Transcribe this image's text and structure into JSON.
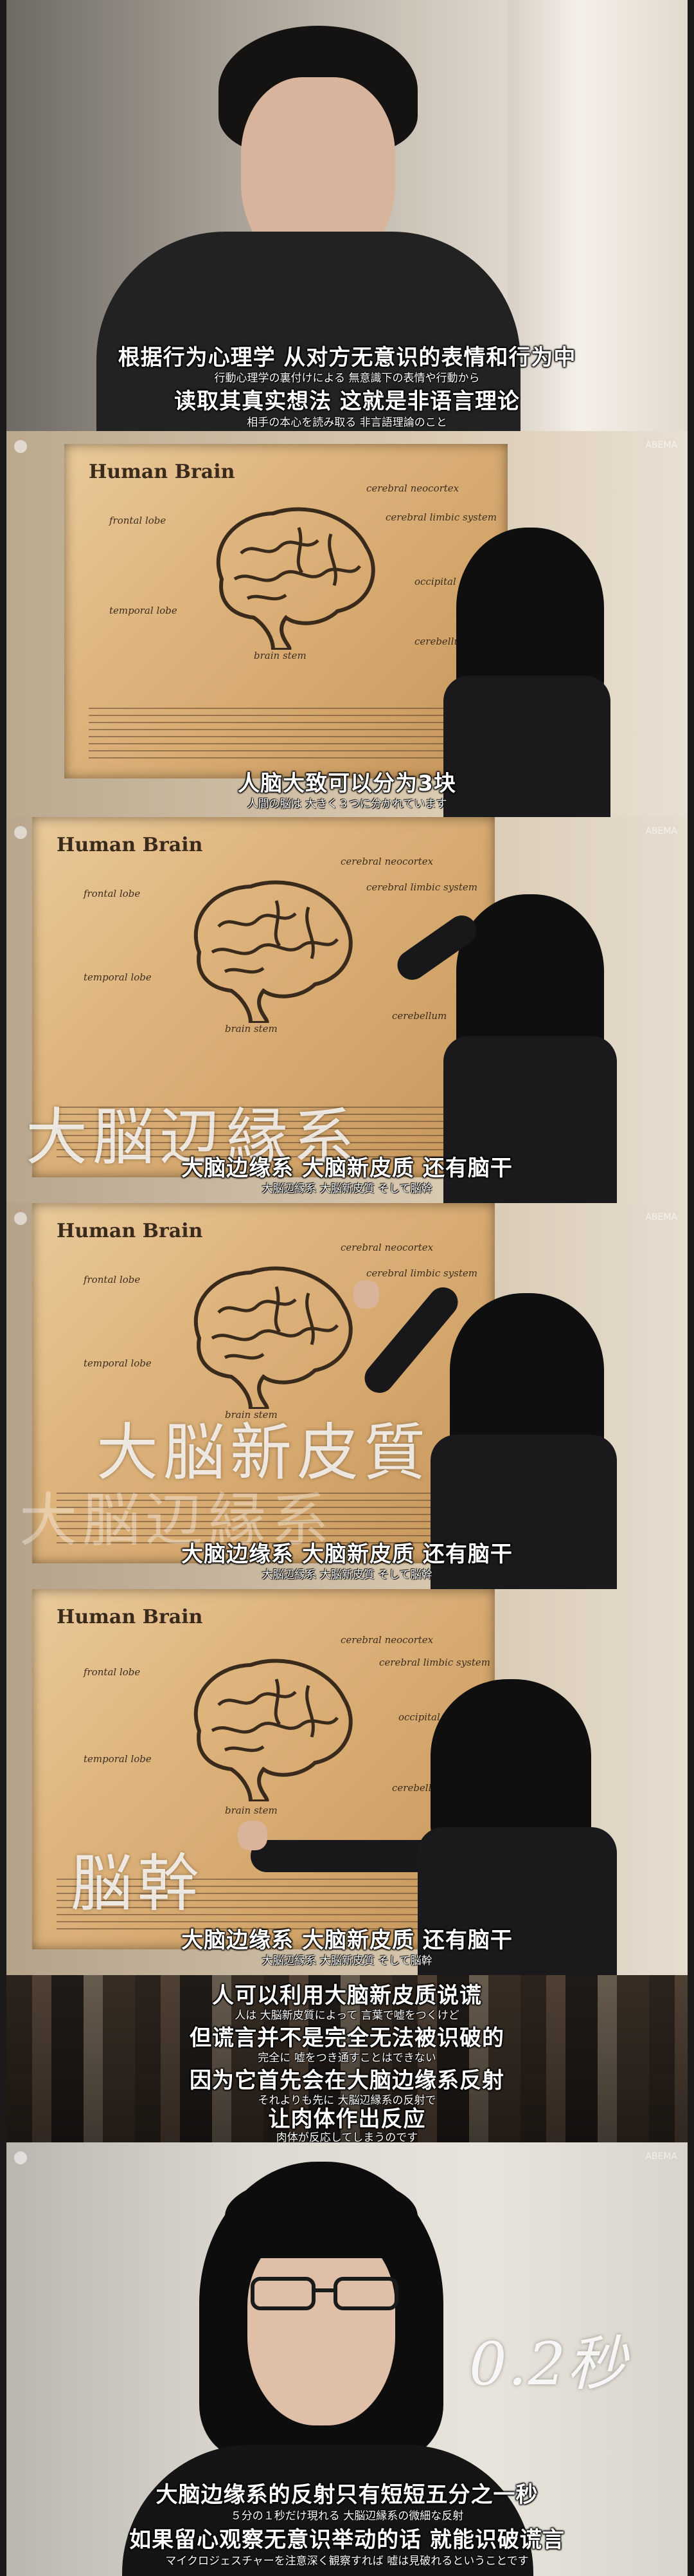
{
  "panels": [
    {
      "sub_zh": [
        "根据行为心理学 从对方无意识的表情和行为中",
        "读取其真实想法 这就是非语言理论"
      ],
      "sub_ja": [
        "行動心理学の裏付けによる 無意識下の表情や行動から",
        "相手の本心を読み取る 非言語理論のこと"
      ]
    },
    {
      "poster_title": "Human Brain",
      "poster_labels": [
        "frontal lobe",
        "cerebral neocortex",
        "cerebral limbic system",
        "occipital",
        "temporal lobe",
        "brain stem",
        "cerebellum"
      ],
      "sub_zh": [
        "人脑大致可以分为3块"
      ],
      "sub_ja": [
        "人間の脳は 大きく３つに分かれています"
      ],
      "watermark": "ABEMA"
    },
    {
      "poster_title": "Human Brain",
      "poster_labels": [
        "frontal lobe",
        "cerebral neocortex",
        "cerebral limbic system",
        "temporal lobe",
        "brain stem",
        "cerebellum"
      ],
      "caption_big": "大脳辺縁系",
      "sub_zh": [
        "大脑边缘系 大脑新皮质 还有脑干"
      ],
      "sub_ja": [
        "大脳辺縁系 大脳新皮質 そして脳幹"
      ],
      "watermark": "ABEMA"
    },
    {
      "poster_title": "Human Brain",
      "poster_labels": [
        "frontal lobe",
        "cerebral neocortex",
        "cerebral limbic system",
        "temporal lobe",
        "brain stem"
      ],
      "caption_big": "大脳新皮質",
      "caption_ghost": "大脳辺縁系",
      "sub_zh": [
        "大脑边缘系 大脑新皮质 还有脑干"
      ],
      "sub_ja": [
        "大脳辺縁系 大脳新皮質 そして脳幹"
      ],
      "watermark": "ABEMA"
    },
    {
      "poster_title": "Human Brain",
      "poster_labels": [
        "frontal lobe",
        "cerebral neocortex",
        "cerebral limbic system",
        "occipital",
        "temporal lobe",
        "brain stem",
        "cerebellum"
      ],
      "caption_big": "脳幹",
      "sub_zh": [
        "大脑边缘系 大脑新皮质 还有脑干"
      ],
      "sub_ja": [
        "大脳辺縁系 大脳新皮質 そして脳幹"
      ]
    },
    {
      "sub_zh": [
        "人可以利用大脑新皮质说谎",
        "但谎言并不是完全无法被识破的",
        "因为它首先会在大脑边缘系反射",
        "让肉体作出反应"
      ],
      "sub_ja": [
        "人は 大脳新皮質によって 言葉で嘘をつくけど",
        "完全に 嘘をつき通すことはできない",
        "それよりも先に 大脳辺縁系の反射で",
        "肉体が反応してしまうのです"
      ]
    },
    {
      "caption_big": "0.2秒",
      "sub_zh": [
        "大脑边缘系的反射只有短短五分之一秒",
        "如果留心观察无意识举动的话 就能识破谎言"
      ],
      "sub_ja": [
        "５分の１秒だけ現れる 大脳辺縁系の微細な反射",
        "マイクロジェスチャーを注意深く観察すれば 嘘は見破れるということです"
      ],
      "watermark": "ABEMA"
    }
  ],
  "colors": {
    "poster": "#deb47d",
    "subtitle": "#ffffff",
    "background": "#1c1a18"
  }
}
